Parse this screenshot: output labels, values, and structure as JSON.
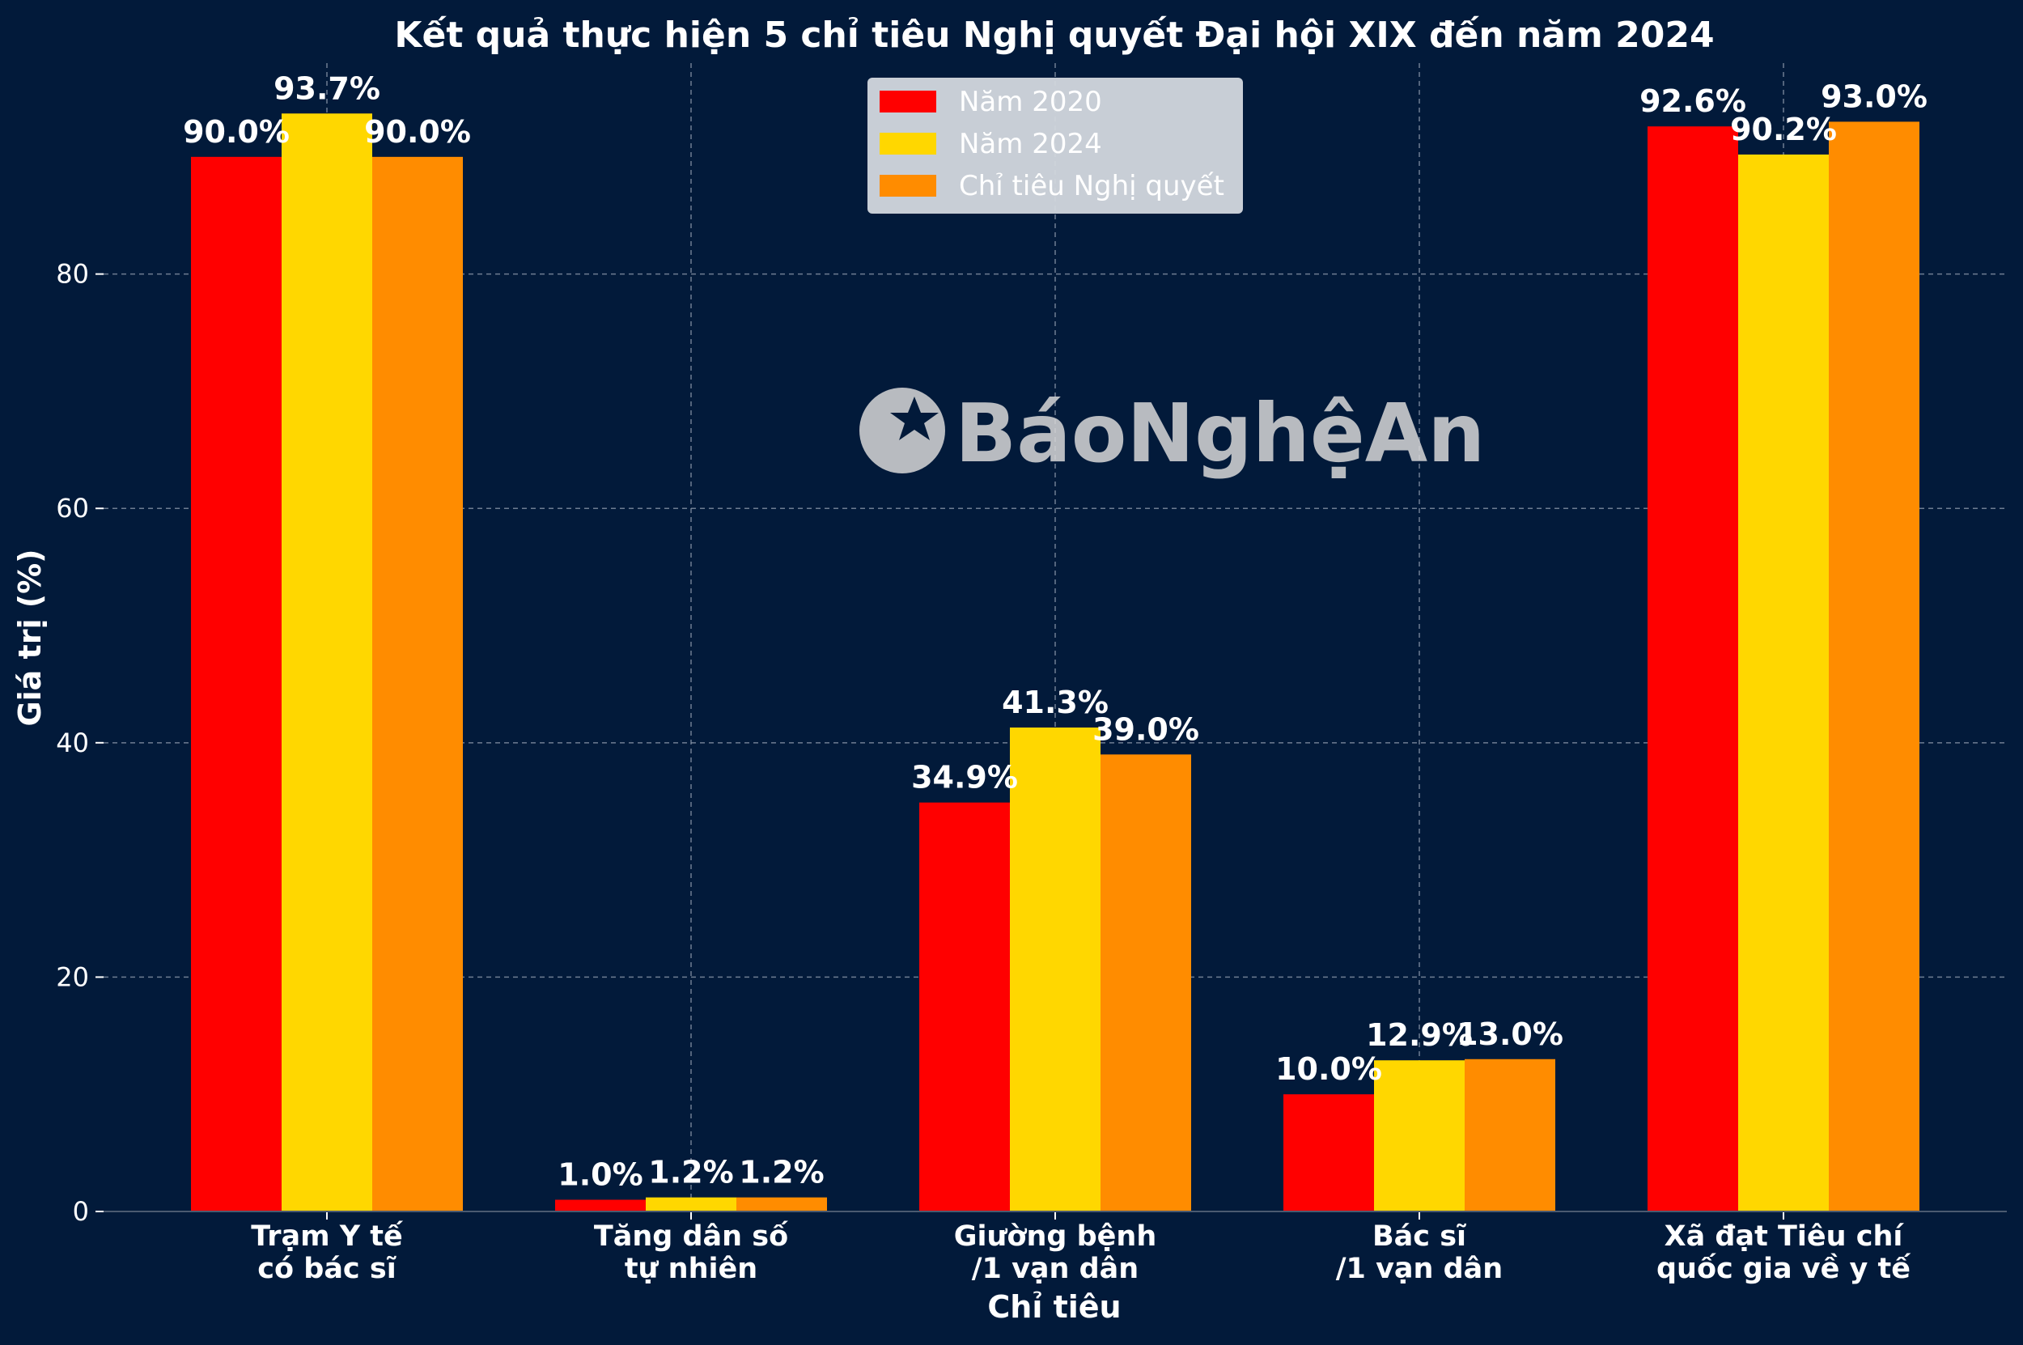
{
  "chart_data": {
    "type": "bar",
    "title": "Kết quả thực hiện 5 chỉ tiêu Nghị quyết Đại hội XIX đến năm 2024",
    "xlabel": "Chỉ tiêu",
    "ylabel": "Giá trị (%)",
    "ylim": [
      0,
      98
    ],
    "yticks": [
      0,
      20,
      40,
      60,
      80
    ],
    "categories": [
      [
        "Trạm Y tế",
        "có bác sĩ"
      ],
      [
        "Tăng dân số",
        "tự nhiên"
      ],
      [
        "Giường bệnh",
        "/1 vạn dân"
      ],
      [
        "Bác sĩ",
        "/1 vạn dân"
      ],
      [
        "Xã đạt Tiêu chí",
        "quốc gia về y tế"
      ]
    ],
    "series": [
      {
        "name": "Năm 2020",
        "color": "#ff0000",
        "values": [
          90.0,
          1.0,
          34.9,
          10.0,
          92.6
        ],
        "labels": [
          "90.0%",
          "1.0%",
          "34.9%",
          "10.0%",
          "92.6%"
        ]
      },
      {
        "name": "Năm 2024",
        "color": "#ffd700",
        "values": [
          93.7,
          1.2,
          41.3,
          12.9,
          90.2
        ],
        "labels": [
          "93.7%",
          "1.2%",
          "41.3%",
          "12.9%",
          "90.2%"
        ]
      },
      {
        "name": "Chỉ tiêu Nghị quyết",
        "color": "#ff8c00",
        "values": [
          90.0,
          1.2,
          39.0,
          13.0,
          93.0
        ],
        "labels": [
          "90.0%",
          "1.2%",
          "39.0%",
          "13.0%",
          "93.0%"
        ]
      }
    ],
    "legend_position": "top-center",
    "grid": true,
    "watermark": "BáoNghệAn"
  },
  "colors": {
    "background": "#021a3a",
    "text": "#ffffff",
    "grid": "#8a96a8",
    "legend_bg": "#d3d8de"
  }
}
